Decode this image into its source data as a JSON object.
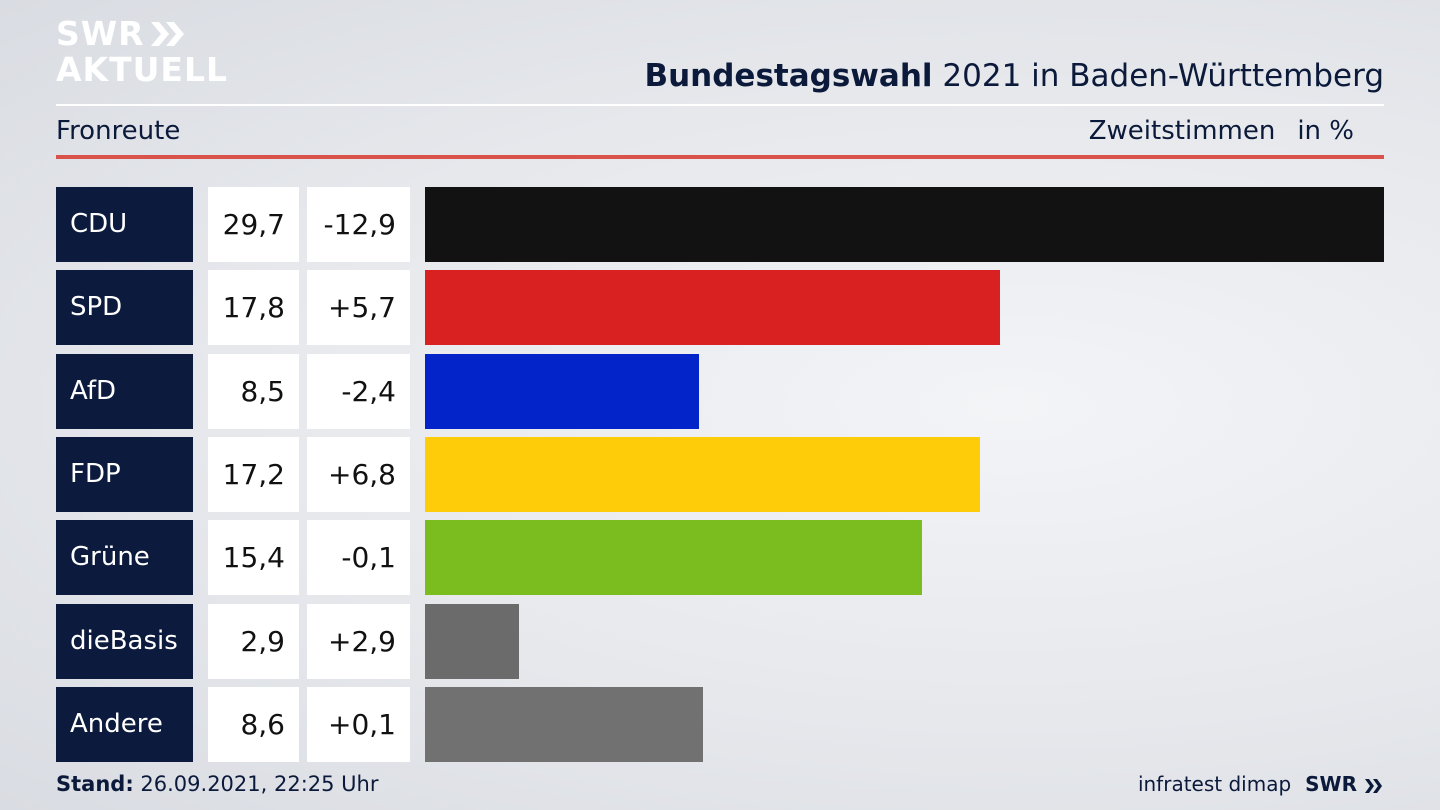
{
  "logo": {
    "line1": "SWR",
    "line2": "AKTUELL",
    "icon": "double-chevron-icon",
    "color": "#ffffff"
  },
  "header": {
    "title_bold": "Bundestagswahl",
    "title_rest": " 2021 in Baden-Württemberg",
    "region": "Fronreute",
    "metric": "Zweitstimmen",
    "unit": "in %"
  },
  "footer": {
    "stand_label": "Stand:",
    "stand_value": " 26.09.2021, 22:25 Uhr",
    "source": "infratest dimap",
    "brand": "SWR"
  },
  "chart_data": {
    "type": "bar",
    "orientation": "horizontal",
    "title": "Bundestagswahl 2021 in Baden-Württemberg",
    "subtitle": "Fronreute",
    "xlabel": "Zweitstimmen",
    "unit": "in %",
    "xlim": [
      0,
      29.7
    ],
    "categories": [
      "CDU",
      "SPD",
      "AfD",
      "FDP",
      "Grüne",
      "dieBasis",
      "Andere"
    ],
    "values": [
      29.7,
      17.8,
      8.5,
      17.2,
      15.4,
      2.9,
      8.6
    ],
    "value_labels": [
      "29,7",
      "17,8",
      "8,5",
      "17,2",
      "15,4",
      "2,9",
      "8,6"
    ],
    "change_labels": [
      "-12,9",
      "+5,7",
      "-2,4",
      "+6,8",
      "-0,1",
      "+2,9",
      "+0,1"
    ],
    "colors": [
      "#121212",
      "#d92121",
      "#0324c8",
      "#ffcc0a",
      "#7bbd1e",
      "#6b6b6b",
      "#717171"
    ],
    "grid": false,
    "legend": "none"
  }
}
